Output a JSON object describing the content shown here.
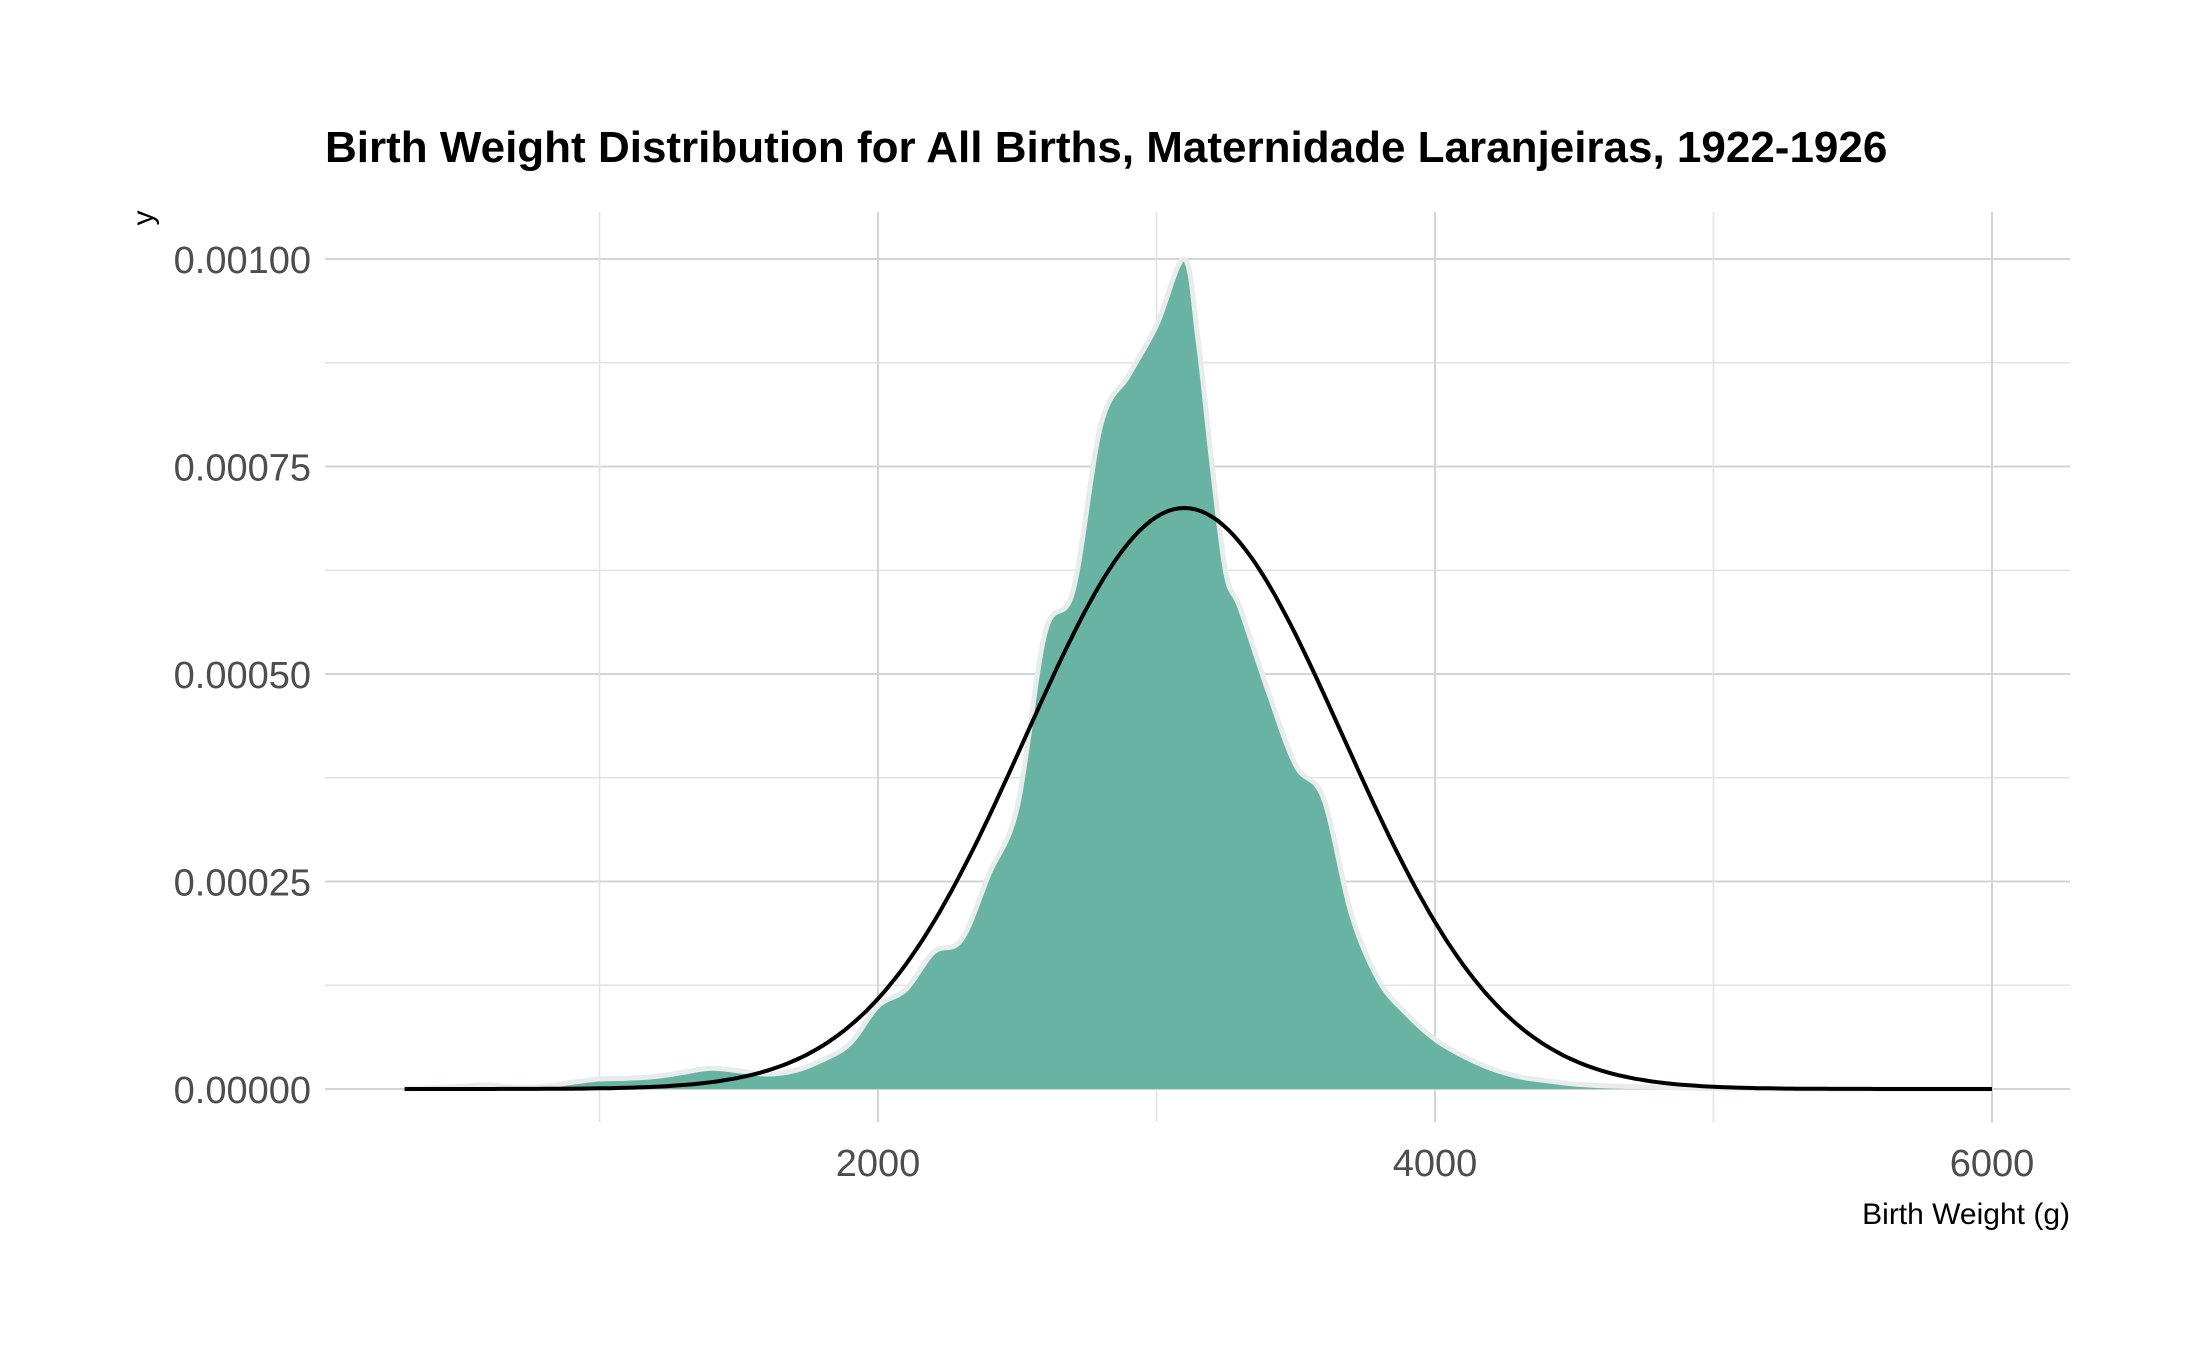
{
  "chart_data": {
    "type": "area",
    "title": "Birth Weight Distribution for All Births, Maternidade Laranjeiras, 1922-1926",
    "xlabel": "Birth Weight (g)",
    "ylabel": "y",
    "xlim": [
      150,
      6300
    ],
    "ylim": [
      -5e-05,
      0.00106
    ],
    "x_ticks": [
      2000,
      4000,
      6000
    ],
    "x_tick_labels": [
      "2000",
      "4000",
      "6000"
    ],
    "y_ticks": [
      0,
      0.00025,
      0.0005,
      0.00075,
      0.001
    ],
    "y_tick_labels": [
      "0.00000",
      "0.00025",
      "0.00050",
      "0.00075",
      "0.00100"
    ],
    "grid": true,
    "legend": "none",
    "series": [
      {
        "type": "area",
        "color": "#69b3a2",
        "outline": "#e8ecec",
        "x": [
          300,
          500,
          600,
          700,
          800,
          900,
          1000,
          1100,
          1200,
          1300,
          1400,
          1500,
          1600,
          1700,
          1800,
          1900,
          2000,
          2100,
          2200,
          2300,
          2400,
          2500,
          2600,
          2700,
          2800,
          2900,
          3000,
          3100,
          3150,
          3200,
          3250,
          3300,
          3400,
          3500,
          3600,
          3700,
          3800,
          3900,
          4000,
          4100,
          4200,
          4300,
          4400,
          4500,
          4600,
          4700,
          4800,
          4900,
          5000,
          5200,
          5500,
          6000
        ],
        "y": [
          0,
          3e-06,
          5e-06,
          2e-06,
          3e-06,
          8e-06,
          1.2e-05,
          1.3e-05,
          1.5e-05,
          2e-05,
          2.5e-05,
          2.2e-05,
          1.8e-05,
          2.2e-05,
          3.5e-05,
          5.5e-05,
          0.0001,
          0.00012,
          0.000165,
          0.00018,
          0.00026,
          0.00034,
          0.00055,
          0.0006,
          0.0008,
          0.00086,
          0.00092,
          0.001,
          0.0009,
          0.00075,
          0.00062,
          0.00058,
          0.00048,
          0.00039,
          0.00035,
          0.00021,
          0.00013,
          9e-05,
          6e-05,
          4e-05,
          2.5e-05,
          1.5e-05,
          1e-05,
          6e-06,
          4e-06,
          3e-06,
          2e-06,
          1e-06,
          5e-07,
          2e-07,
          0,
          0
        ]
      },
      {
        "type": "line",
        "color": "#000000",
        "mean": 3100,
        "sd": 570,
        "x_range": [
          300,
          6000
        ],
        "peak": 0.0007
      }
    ]
  }
}
